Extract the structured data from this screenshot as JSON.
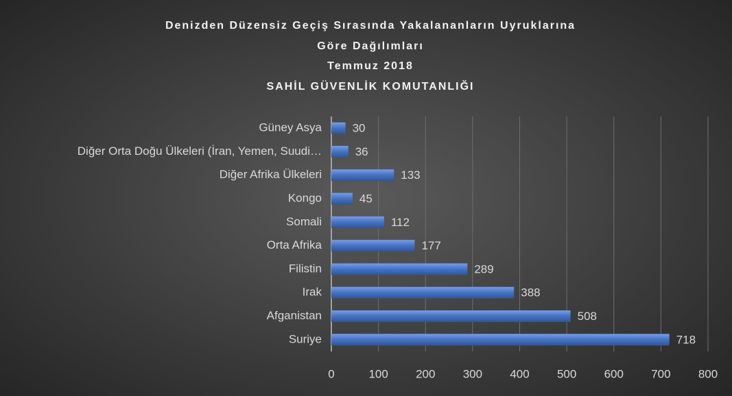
{
  "chart_data": {
    "type": "hbar",
    "title": [
      "Denizden Düzensiz Geçiş Sırasında Yakalananların Uyruklarına",
      "Göre Dağılımları",
      "Temmuz 2018",
      "SAHİL GÜVENLİK KOMUTANLIĞI"
    ],
    "categories": [
      "Güney Asya",
      "Diğer Orta Doğu Ülkeleri (İran, Yemen, Suudi…",
      "Diğer Afrika Ülkeleri",
      "Kongo",
      "Somali",
      "Orta Afrika",
      "Filistin",
      "Irak",
      "Afganistan",
      "Suriye"
    ],
    "values": [
      30,
      36,
      133,
      45,
      112,
      177,
      289,
      388,
      508,
      718
    ],
    "color": "#4472c4",
    "xlim": [
      0,
      800
    ],
    "xticks": [
      0,
      100,
      200,
      300,
      400,
      500,
      600,
      700,
      800
    ],
    "grid": true
  }
}
